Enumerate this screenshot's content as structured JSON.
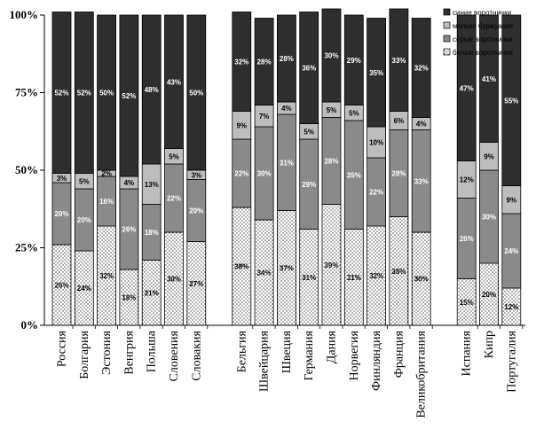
{
  "chart_data": {
    "type": "bar",
    "stacked": true,
    "ylim": [
      0,
      100
    ],
    "y_ticks": [
      "0%",
      "25%",
      "50%",
      "75%",
      "100%"
    ],
    "grid": false,
    "legend_position": "top-right",
    "groups": [
      [
        "Россия",
        "Болгария",
        "Эстония",
        "Венгрия",
        "Польша",
        "Словения",
        "Словакия"
      ],
      [
        "Бельгия",
        "Швейцария",
        "Швеция",
        "Германия",
        "Дания",
        "Норвегия",
        "Финляндия",
        "Франция",
        "Великобритания"
      ],
      [
        "Испания",
        "Кипр",
        "Португалия"
      ]
    ],
    "categories": [
      "Россия",
      "Болгария",
      "Эстония",
      "Венгрия",
      "Польша",
      "Словения",
      "Словакия",
      "Бельгия",
      "Швейцария",
      "Швеция",
      "Германия",
      "Дания",
      "Норвегия",
      "Финляндия",
      "Франция",
      "Великобритания",
      "Испания",
      "Кипр",
      "Португалия"
    ],
    "series": [
      {
        "name": "белые воротнички",
        "color": "#ffffff",
        "pattern": "dots",
        "label_color": "#000000",
        "values": [
          26,
          24,
          32,
          18,
          21,
          30,
          27,
          38,
          34,
          37,
          31,
          39,
          31,
          32,
          35,
          30,
          15,
          20,
          12
        ]
      },
      {
        "name": "серые воротнички",
        "color": "#8a8a8a",
        "label_color": "#ffffff",
        "values": [
          20,
          20,
          16,
          26,
          18,
          22,
          20,
          22,
          30,
          31,
          29,
          28,
          35,
          22,
          28,
          33,
          26,
          30,
          24
        ]
      },
      {
        "name": "мелкая буржуазия",
        "color": "#bdbdbd",
        "label_color": "#000000",
        "values": [
          3,
          5,
          2,
          4,
          13,
          5,
          3,
          9,
          7,
          4,
          5,
          5,
          5,
          10,
          6,
          4,
          12,
          9,
          9
        ]
      },
      {
        "name": "синие воротнички",
        "color": "#2e2e2e",
        "label_color": "#ffffff",
        "values": [
          52,
          52,
          50,
          52,
          48,
          43,
          50,
          32,
          28,
          28,
          36,
          30,
          29,
          35,
          33,
          32,
          47,
          41,
          55
        ]
      }
    ],
    "value_labels": [
      [
        "26%",
        "24%",
        "32%",
        "18%",
        "21%",
        "30%",
        "27%",
        "38%",
        "34%",
        "37%",
        "31%",
        "39%",
        "31%",
        "32%",
        "35%",
        "30%",
        "15%",
        "20%",
        "12%"
      ],
      [
        "20%",
        "20%",
        "16%",
        "26%",
        "18%",
        "22%",
        "20%",
        "22%",
        "30%",
        "31%",
        "29%",
        "28%",
        "35%",
        "22%",
        "28%",
        "33%",
        "26%",
        "30%",
        "24%"
      ],
      [
        "3%",
        "5%",
        "2%",
        "4%",
        "13%",
        "5%",
        "3%",
        "9%",
        "7%",
        "4%",
        "5%",
        "5%",
        "5%",
        "10%",
        "6%",
        "4%",
        "12%",
        "9%",
        "9%"
      ],
      [
        "52%",
        "52%",
        "50%",
        "52%",
        "48%",
        "43%",
        "50%",
        "32%",
        "28%",
        "28%",
        "36%",
        "30%",
        "29%",
        "35%",
        "33%",
        "32%",
        "47%",
        "41%",
        "55%"
      ]
    ],
    "legend_order": [
      "синие воротнички",
      "мелкая буржуазия",
      "серые воротнички",
      "белые воротнички"
    ]
  }
}
